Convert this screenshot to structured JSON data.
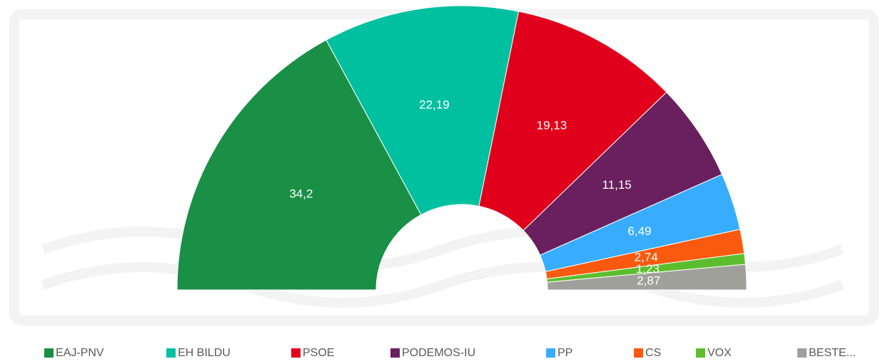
{
  "chart_data": {
    "type": "pie",
    "categories": [
      "EAJ-PNV",
      "EH BILDU",
      "PSOE",
      "PODEMOS-IU",
      "PP",
      "CS",
      "VOX",
      "BESTE..."
    ],
    "values": [
      34.2,
      22.19,
      19.13,
      11.15,
      6.49,
      2.74,
      1.23,
      2.87
    ],
    "value_labels": [
      "34,2",
      "22,19",
      "19,13",
      "11,15",
      "6,49",
      "2,74",
      "1,23",
      "2,87"
    ],
    "colors": [
      "#1a8f46",
      "#00c0a0",
      "#e0001b",
      "#6a1f5e",
      "#38adff",
      "#fa5a0f",
      "#5cbe2e",
      "#a0a09a"
    ],
    "legend": "bottom"
  }
}
